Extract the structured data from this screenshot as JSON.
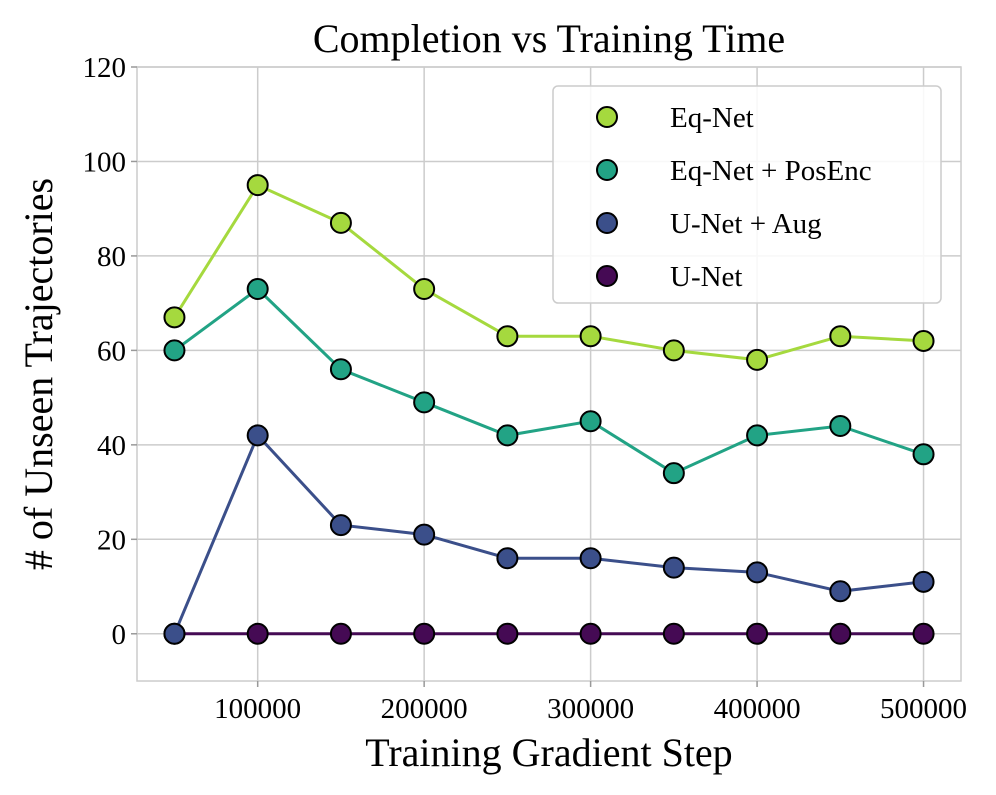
{
  "chart_data": {
    "type": "line",
    "title": "Completion vs Training Time",
    "xlabel": "Training Gradient Step",
    "ylabel": "# of Unseen Trajectories",
    "x": [
      50000,
      100000,
      150000,
      200000,
      250000,
      300000,
      350000,
      400000,
      450000,
      500000
    ],
    "xlim": [
      27500,
      522500
    ],
    "ylim": [
      -10,
      120
    ],
    "xticks": [
      100000,
      200000,
      300000,
      400000,
      500000
    ],
    "xtick_labels": [
      "100000",
      "200000",
      "300000",
      "400000",
      "500000"
    ],
    "yticks": [
      0,
      20,
      40,
      60,
      80,
      100,
      120
    ],
    "ytick_labels": [
      "0",
      "20",
      "40",
      "60",
      "80",
      "100",
      "120"
    ],
    "grid": true,
    "legend_position": "top-right",
    "series": [
      {
        "name": "Eq-Net",
        "color": "#a5d93e",
        "values": [
          67,
          95,
          87,
          73,
          63,
          63,
          60,
          58,
          63,
          62
        ]
      },
      {
        "name": "Eq-Net + PosEnc",
        "color": "#22a385",
        "values": [
          60,
          73,
          56,
          49,
          42,
          45,
          34,
          42,
          44,
          38
        ]
      },
      {
        "name": "U-Net + Aug",
        "color": "#3b4f8a",
        "values": [
          0,
          42,
          23,
          21,
          16,
          16,
          14,
          13,
          9,
          11
        ]
      },
      {
        "name": "U-Net",
        "color": "#450a54",
        "values": [
          0,
          0,
          0,
          0,
          0,
          0,
          0,
          0,
          0,
          0
        ]
      }
    ]
  }
}
